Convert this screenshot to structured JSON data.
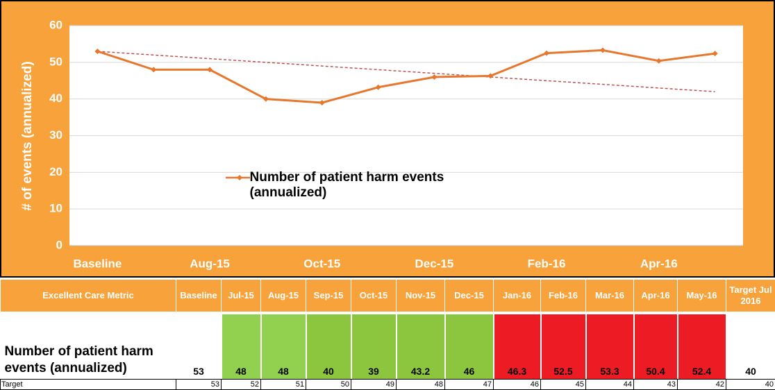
{
  "chart_data": {
    "type": "line",
    "ylabel": "# of events (annualized)",
    "categories": [
      "Baseline",
      null,
      "Aug-15",
      null,
      "Oct-15",
      null,
      "Dec-15",
      null,
      "Feb-16",
      null,
      "Apr-16",
      null
    ],
    "series": [
      {
        "name": "Number of patient harm events (annualized)",
        "color": "#e8772e",
        "values": [
          53,
          48,
          48,
          40,
          39,
          43.2,
          46,
          46.3,
          52.5,
          53.3,
          50.4,
          52.4
        ]
      },
      {
        "color": "#c0504d",
        "dashed": true,
        "values": [
          53,
          52,
          51,
          50,
          49,
          48,
          47,
          46,
          45,
          44,
          43,
          42
        ]
      }
    ],
    "ylim": [
      0,
      60
    ],
    "yticks": [
      0,
      10,
      20,
      30,
      40,
      50,
      60
    ],
    "grid": true
  },
  "table": {
    "header": [
      "Excellent Care Metric",
      "Baseline",
      "Jul-15",
      "Aug-15",
      "Sep-15",
      "Oct-15",
      "Nov-15",
      "Dec-15",
      "Jan-16",
      "Feb-16",
      "Mar-16",
      "Apr-16",
      "May-16",
      "Target Jul 2016"
    ],
    "rows": [
      {
        "label": "Number of patient harm events (annualized)",
        "values": [
          53,
          48,
          48,
          40,
          39,
          43.2,
          46,
          46.3,
          52.5,
          53.3,
          50.4,
          52.4,
          40
        ],
        "fills": [
          "#ffffff",
          "#92d050",
          "#92d050",
          "#8cc63f",
          "#8cc63f",
          "#8cc63f",
          "#8cc63f",
          "#ed1c24",
          "#ed1c24",
          "#ed1c24",
          "#ed1c24",
          "#ed1c24",
          "#ffffff"
        ]
      },
      {
        "label": "Target",
        "values": [
          53,
          52,
          51,
          50,
          49,
          48,
          47,
          46,
          45,
          44,
          43,
          42,
          40
        ]
      }
    ]
  }
}
